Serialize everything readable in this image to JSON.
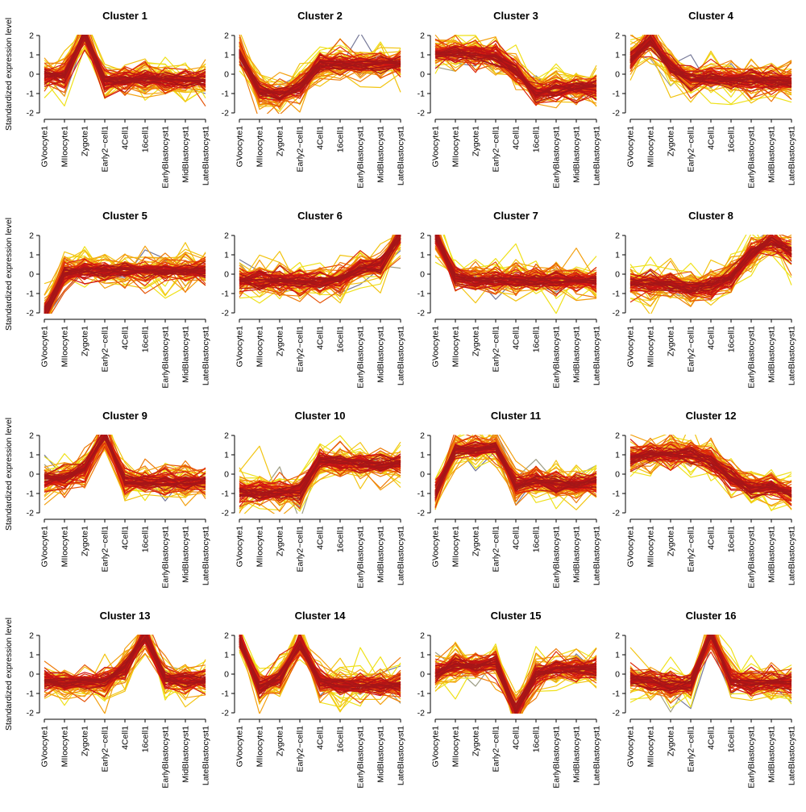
{
  "chart_data": {
    "type": "line",
    "ylabel": "Standardized expression level",
    "x": [
      "GVoocyte1",
      "MIIoocyte1",
      "Zygote1",
      "Early2−cell1",
      "4Cell1",
      "16cell1",
      "EarlyBlastocyst1",
      "MidBlastocyst1",
      "LateBlastocyst1"
    ],
    "ylim": [
      -2,
      2
    ],
    "yticks": [
      -2,
      -1,
      0,
      1,
      2
    ],
    "grid": false,
    "legend": "none",
    "colors": [
      "#EFE11A",
      "#F2C411",
      "#F3A010",
      "#EE7D0C",
      "#E65508",
      "#DE2A0A",
      "#D11414",
      "#BE1515",
      "#A51618"
    ],
    "outlier_colors": [
      "#9E9E86",
      "#777A99"
    ],
    "panels": [
      {
        "title": "Cluster 1",
        "center": [
          -0.1,
          -0.1,
          2.1,
          -0.3,
          -0.3,
          -0.3,
          -0.3,
          -0.3,
          -0.3
        ]
      },
      {
        "title": "Cluster 2",
        "center": [
          1.0,
          -0.8,
          -1.1,
          -0.6,
          0.5,
          0.6,
          0.5,
          0.6,
          0.5
        ]
      },
      {
        "title": "Cluster 3",
        "center": [
          1.1,
          1.1,
          1.0,
          1.0,
          0.2,
          -1.0,
          -0.8,
          -0.7,
          -0.7
        ]
      },
      {
        "title": "Cluster 4",
        "center": [
          0.8,
          1.8,
          0.4,
          -0.3,
          -0.2,
          -0.3,
          -0.3,
          -0.4,
          -0.4
        ]
      },
      {
        "title": "Cluster 5",
        "center": [
          -2.0,
          0.0,
          0.2,
          0.2,
          0.2,
          0.2,
          0.2,
          0.2,
          0.2
        ]
      },
      {
        "title": "Cluster 6",
        "center": [
          -0.3,
          -0.3,
          -0.3,
          -0.4,
          -0.4,
          -0.3,
          0.3,
          0.4,
          2.0
        ]
      },
      {
        "title": "Cluster 7",
        "center": [
          2.1,
          -0.2,
          -0.3,
          -0.3,
          -0.3,
          -0.3,
          -0.3,
          -0.3,
          -0.4
        ]
      },
      {
        "title": "Cluster 8",
        "center": [
          -0.5,
          -0.5,
          -0.5,
          -0.7,
          -0.6,
          -0.2,
          1.1,
          1.7,
          1.2
        ]
      },
      {
        "title": "Cluster 9",
        "center": [
          -0.3,
          -0.2,
          0.3,
          2.0,
          -0.4,
          -0.5,
          -0.4,
          -0.4,
          -0.4
        ]
      },
      {
        "title": "Cluster 10",
        "center": [
          -0.9,
          -0.9,
          -0.9,
          -0.9,
          0.6,
          0.6,
          0.5,
          0.5,
          0.5
        ]
      },
      {
        "title": "Cluster 11",
        "center": [
          -1.0,
          1.3,
          1.3,
          1.4,
          -0.5,
          -0.3,
          -0.5,
          -0.5,
          -0.4
        ]
      },
      {
        "title": "Cluster 12",
        "center": [
          0.9,
          1.0,
          1.0,
          1.0,
          0.7,
          -0.2,
          -0.8,
          -0.6,
          -1.0
        ]
      },
      {
        "title": "Cluster 13",
        "center": [
          -0.3,
          -0.5,
          -0.4,
          -0.4,
          0.3,
          2.0,
          -0.2,
          -0.3,
          -0.3
        ]
      },
      {
        "title": "Cluster 14",
        "center": [
          1.8,
          -0.7,
          -0.2,
          1.6,
          -0.3,
          -0.6,
          -0.6,
          -0.6,
          -0.6
        ]
      },
      {
        "title": "Cluster 15",
        "center": [
          0.0,
          0.5,
          0.4,
          0.6,
          -1.9,
          0.0,
          0.3,
          0.3,
          0.3
        ]
      },
      {
        "title": "Cluster 16",
        "center": [
          -0.3,
          -0.4,
          -0.6,
          -0.5,
          2.1,
          -0.3,
          -0.4,
          -0.4,
          -0.5
        ]
      }
    ]
  }
}
